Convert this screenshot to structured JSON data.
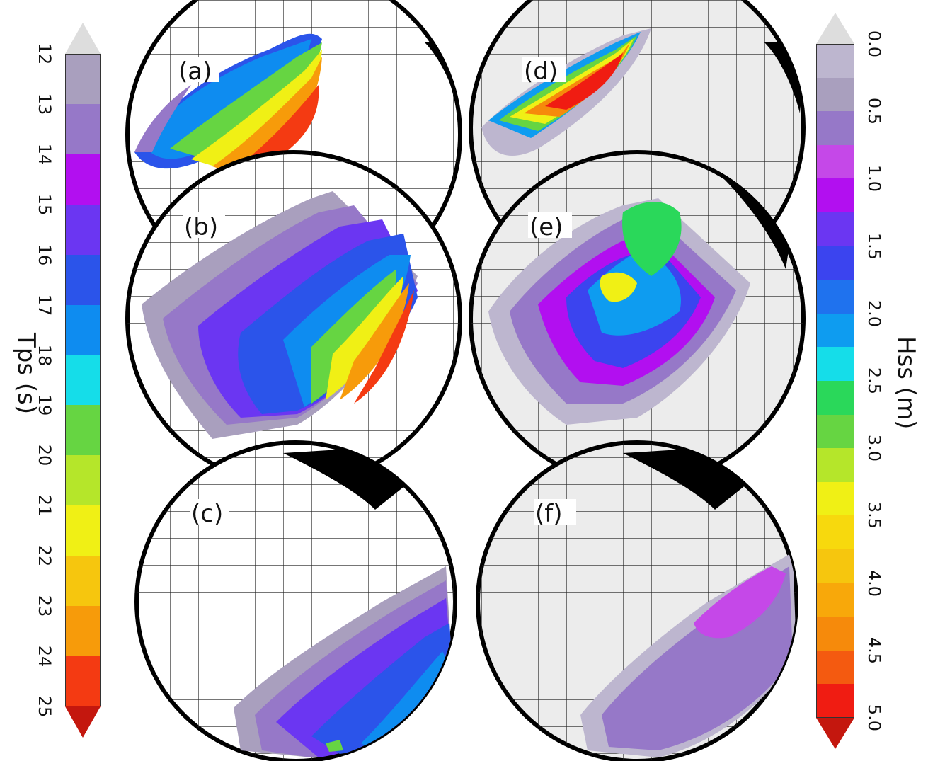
{
  "left_colorbar": {
    "title": "Tps (s)",
    "ticks": [
      "12",
      "13",
      "14",
      "15",
      "16",
      "17",
      "18",
      "19",
      "20",
      "21",
      "22",
      "23",
      "24",
      "25"
    ],
    "colors": [
      "#a99fbe",
      "#9678c8",
      "#b20ff0",
      "#6b36f2",
      "#2b54ea",
      "#0e8cf0",
      "#15dde9",
      "#66d542",
      "#b5e62a",
      "#f0f015",
      "#f6c60e",
      "#f79b0a",
      "#f43a12"
    ],
    "under_color": "#dddddd",
    "over_color": "#c4170e"
  },
  "right_colorbar": {
    "title": "Hss (m)",
    "ticks": [
      "0.0",
      "0.5",
      "1.0",
      "1.5",
      "2.0",
      "2.5",
      "3.0",
      "3.5",
      "4.0",
      "4.5",
      "5.0"
    ],
    "colors": [
      "#bdb6cf",
      "#a99fbe",
      "#9678c8",
      "#c548e8",
      "#b20ff0",
      "#6b36f2",
      "#3b44ef",
      "#1f72ee",
      "#0e9cf0",
      "#15dde9",
      "#2ad85a",
      "#66d542",
      "#b5e62a",
      "#f0f015",
      "#f7d90d",
      "#f6c60e",
      "#f8a80a",
      "#f68a0b",
      "#f45a10",
      "#f01c12"
    ],
    "under_color": "#dddddd",
    "over_color": "#c4170e"
  },
  "panels": [
    {
      "id": "a",
      "label": "(a)"
    },
    {
      "id": "b",
      "label": "(b)"
    },
    {
      "id": "c",
      "label": "(c)"
    },
    {
      "id": "d",
      "label": "(d)"
    },
    {
      "id": "e",
      "label": "(e)"
    },
    {
      "id": "f",
      "label": "(f)"
    }
  ]
}
